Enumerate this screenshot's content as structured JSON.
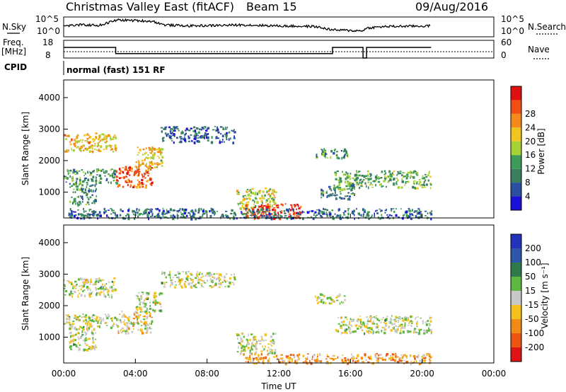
{
  "header": {
    "station": "Christmas Valley East (fitACF)",
    "beam": "Beam 15",
    "date": "09/Aug/2016"
  },
  "top_panels": {
    "nsky_label": "N.Sky",
    "nsky_ticks": [
      "10^5",
      "10^0"
    ],
    "nsearch_label": "N.Search",
    "nsearch_ticks": [
      "10^5",
      "10^0"
    ],
    "freq_label": "Freq.",
    "freq_unit": "[MHz]",
    "freq_ticks": [
      "18",
      "8"
    ],
    "nave_label": "Nave",
    "nave_ticks": [
      "60",
      "0"
    ],
    "cpid_label": "CPID",
    "cpid_value": "normal (fast) 151 RF"
  },
  "colors": {
    "power_scale": [
      "#1a10d8",
      "#2a4fa0",
      "#3b7e5e",
      "#3d9b58",
      "#a6d233",
      "#f2c41f",
      "#f58a1b",
      "#ef4e14",
      "#e01010"
    ],
    "velocity_scale": [
      "#2233bb",
      "#2e55a8",
      "#2e7a4a",
      "#5cb83e",
      "#c8c8c8",
      "#f5c11f",
      "#f28b14",
      "#ee5512",
      "#e01414"
    ]
  },
  "chart_data": [
    {
      "type": "heatmap",
      "name": "power-panel",
      "ylabel": "Slant Range [km]",
      "yticks": [
        "1000",
        "2000",
        "3000",
        "4000"
      ],
      "ylim": [
        180,
        4560
      ],
      "xlim": [
        0,
        24
      ],
      "colorbar": {
        "label": "Power [dB]",
        "ticks": [
          "4",
          "8",
          "12",
          "16",
          "20",
          "24",
          "28"
        ]
      },
      "echo_regions": [
        {
          "t0": 0.0,
          "t1": 2.9,
          "r0": 2300,
          "r1": 2900,
          "level": 0.62
        },
        {
          "t0": 0.0,
          "t1": 3.0,
          "r0": 1300,
          "r1": 1750,
          "level": 0.35
        },
        {
          "t0": 0.3,
          "t1": 1.8,
          "r0": 600,
          "r1": 1300,
          "level": 0.3
        },
        {
          "t0": 2.9,
          "t1": 4.9,
          "r0": 1150,
          "r1": 1850,
          "level": 0.82
        },
        {
          "t0": 4.0,
          "t1": 5.5,
          "r0": 1800,
          "r1": 2450,
          "level": 0.6
        },
        {
          "t0": 9.6,
          "t1": 11.8,
          "r0": 500,
          "r1": 1150,
          "level": 0.55
        },
        {
          "t0": 10.0,
          "t1": 13.2,
          "r0": 180,
          "r1": 650,
          "level": 0.88
        },
        {
          "t0": 0.2,
          "t1": 20.5,
          "r0": 180,
          "r1": 500,
          "level": 0.25
        },
        {
          "t0": 15.0,
          "t1": 20.5,
          "r0": 1150,
          "r1": 1700,
          "level": 0.4
        },
        {
          "t0": 14.0,
          "t1": 15.8,
          "r0": 2100,
          "r1": 2400,
          "level": 0.35
        },
        {
          "t0": 5.4,
          "t1": 9.5,
          "r0": 2600,
          "r1": 3100,
          "level": 0.18
        },
        {
          "t0": 14.3,
          "t1": 16.2,
          "r0": 800,
          "r1": 1250,
          "level": 0.3
        }
      ]
    },
    {
      "type": "heatmap",
      "name": "velocity-panel",
      "xlabel": "Time UT",
      "ylabel": "Slant Range [km]",
      "yticks": [
        "1000",
        "2000",
        "3000",
        "4000"
      ],
      "ylim": [
        180,
        4560
      ],
      "xlim": [
        0,
        24
      ],
      "xticks": [
        "00:00",
        "04:00",
        "08:00",
        "12:00",
        "16:00",
        "20:00",
        "00:00"
      ],
      "colorbar": {
        "label": "Velocity [m s⁻¹]",
        "ticks": [
          "200",
          "100",
          "50",
          "15",
          "-15",
          "-50",
          "-100",
          "-200"
        ]
      },
      "echo_regions": [
        {
          "t0": 0.0,
          "t1": 2.9,
          "r0": 2300,
          "r1": 2900,
          "level": 0.5
        },
        {
          "t0": 0.0,
          "t1": 3.0,
          "r0": 1300,
          "r1": 1750,
          "level": 0.5
        },
        {
          "t0": 0.3,
          "t1": 1.8,
          "r0": 600,
          "r1": 1300,
          "level": 0.5
        },
        {
          "t0": 2.9,
          "t1": 4.9,
          "r0": 1150,
          "r1": 1850,
          "level": 0.55
        },
        {
          "t0": 4.0,
          "t1": 5.5,
          "r0": 1800,
          "r1": 2450,
          "level": 0.5
        },
        {
          "t0": 9.6,
          "t1": 11.8,
          "r0": 500,
          "r1": 1150,
          "level": 0.5
        },
        {
          "t0": 10.0,
          "t1": 20.5,
          "r0": 180,
          "r1": 500,
          "level": 0.68
        },
        {
          "t0": 15.0,
          "t1": 20.5,
          "r0": 1150,
          "r1": 1700,
          "level": 0.5
        },
        {
          "t0": 14.0,
          "t1": 15.8,
          "r0": 2100,
          "r1": 2400,
          "level": 0.5
        },
        {
          "t0": 5.4,
          "t1": 9.5,
          "r0": 2600,
          "r1": 3100,
          "level": 0.5
        }
      ]
    }
  ],
  "timeseries": {
    "nsky": [
      [
        0,
        0.55
      ],
      [
        1,
        0.6
      ],
      [
        2,
        0.58
      ],
      [
        3,
        0.85
      ],
      [
        4,
        0.82
      ],
      [
        5,
        0.78
      ],
      [
        5.6,
        0.6
      ],
      [
        7,
        0.55
      ],
      [
        9,
        0.58
      ],
      [
        10,
        0.6
      ],
      [
        12,
        0.55
      ],
      [
        14,
        0.52
      ],
      [
        15,
        0.35
      ],
      [
        16.6,
        0.3
      ],
      [
        17,
        0.45
      ],
      [
        18,
        0.52
      ],
      [
        20.5,
        0.55
      ]
    ],
    "frequency_mhz": [
      [
        0,
        14
      ],
      [
        2.9,
        14
      ],
      [
        2.9,
        10.5
      ],
      [
        15,
        10.5
      ],
      [
        15,
        14
      ],
      [
        16.7,
        14
      ],
      [
        16.7,
        8
      ],
      [
        16.9,
        8
      ],
      [
        16.9,
        14
      ],
      [
        20.5,
        14
      ]
    ]
  }
}
